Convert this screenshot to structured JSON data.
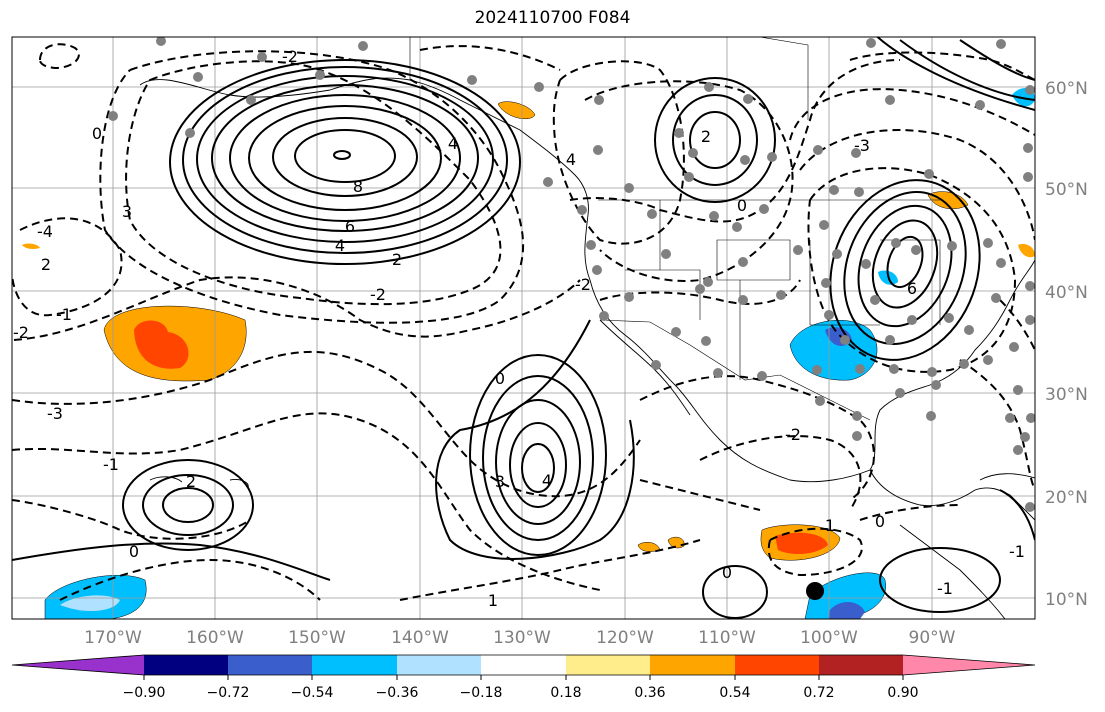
{
  "title": "2024110700 F084",
  "lat_labels": [
    "60°N",
    "50°N",
    "40°N",
    "30°N",
    "20°N",
    "10°N"
  ],
  "lon_labels": [
    "170°W",
    "160°W",
    "150°W",
    "140°W",
    "130°W",
    "120°W",
    "110°W",
    "100°W",
    "90°W"
  ],
  "colorbar": {
    "ticks": [
      "−0.90",
      "−0.72",
      "−0.54",
      "−0.36",
      "−0.18",
      "0.18",
      "0.36",
      "0.54",
      "0.72",
      "0.90"
    ],
    "colors": [
      "#9932cc",
      "#000080",
      "#3a5fcd",
      "#00bfff",
      "#b0e2ff",
      "#ffffff",
      "#ffec8b",
      "#ffa500",
      "#ff4500",
      "#b22222",
      "#ff88aa"
    ]
  },
  "contour_labels": [
    "8",
    "6",
    "4",
    "2",
    "0",
    "-2",
    "3",
    "-4",
    "2",
    "4",
    "-3",
    "-1",
    "2",
    "0",
    "-2",
    "1",
    "0",
    "-1",
    "6",
    "2",
    "0",
    "4",
    "-3",
    "3",
    "-2",
    "4",
    "-2",
    "-1",
    "0",
    "-2",
    "0",
    "1",
    "-1"
  ]
}
